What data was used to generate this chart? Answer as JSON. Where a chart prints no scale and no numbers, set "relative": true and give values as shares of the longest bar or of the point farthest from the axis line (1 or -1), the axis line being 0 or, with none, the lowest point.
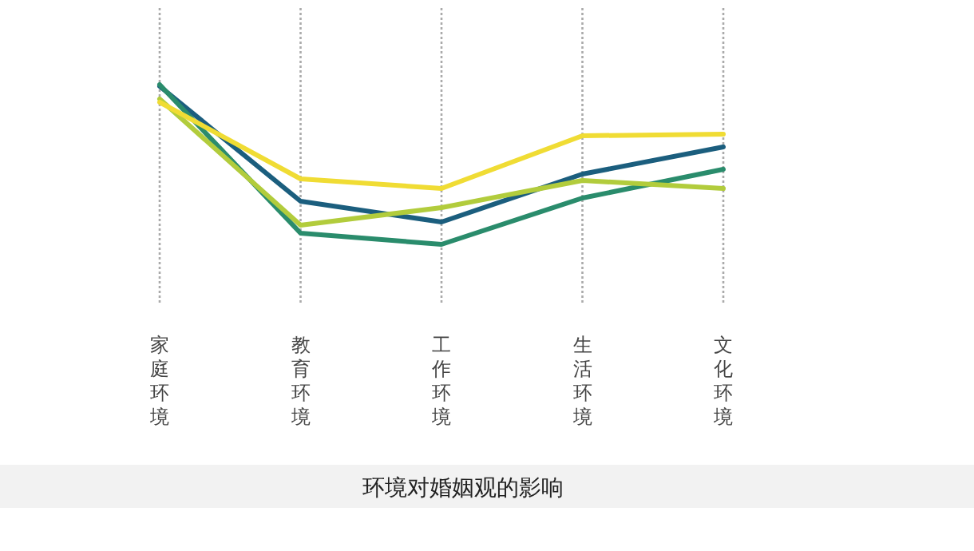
{
  "chart_data": {
    "type": "line",
    "title": "环境对婚姻观的影响",
    "relative": true,
    "grid": "x",
    "categories": [
      "家庭环境",
      "教育环境",
      "工作环境",
      "生活环境",
      "文化环境"
    ],
    "series": [
      {
        "color": "#1b5e7e",
        "values": [
          0.99,
          0.27,
          0.14,
          0.44,
          0.61
        ]
      },
      {
        "color": "#2a8c6c",
        "values": [
          1,
          0.07,
          0,
          0.29,
          0.47
        ]
      },
      {
        "color": "#b2cc3c",
        "values": [
          0.91,
          0.12,
          0.23,
          0.4,
          0.35
        ]
      },
      {
        "color": "#f0dc34",
        "values": [
          0.89,
          0.41,
          0.35,
          0.68,
          0.69
        ]
      }
    ]
  }
}
